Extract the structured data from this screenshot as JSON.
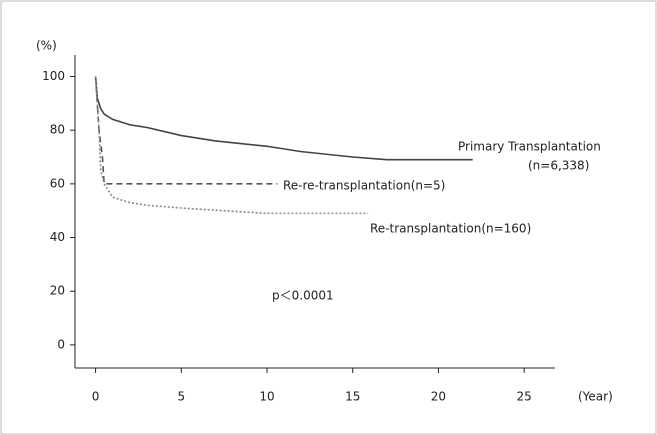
{
  "chart_data": {
    "type": "line",
    "y_label": "(%)",
    "x_label": "(Year)",
    "xlim": [
      -1.2,
      26.8
    ],
    "ylim": [
      -8.6,
      108
    ],
    "xticks": [
      0,
      5,
      10,
      15,
      20,
      25
    ],
    "yticks": [
      0,
      20,
      40,
      60,
      80,
      100
    ],
    "series": [
      {
        "name": "Primary Transplantation",
        "color": "#444444",
        "line_style": "solid",
        "x": [
          0,
          0.1,
          0.3,
          0.5,
          1,
          2,
          3,
          5,
          7,
          10,
          12,
          15,
          17,
          22
        ],
        "values": [
          100,
          92,
          88,
          86,
          84,
          82,
          81,
          78,
          76,
          74,
          72,
          70,
          69,
          69
        ]
      },
      {
        "name": "Re-re-transplantation(n=5)",
        "color": "#555555",
        "line_style": "dashed",
        "x": [
          0,
          0.2,
          0.4,
          0.5,
          10.6
        ],
        "values": [
          100,
          80,
          70,
          60,
          60
        ]
      },
      {
        "name": "Re-transplantation(n=160)",
        "color": "#888888",
        "line_style": "dotted",
        "x": [
          0,
          0.2,
          0.3,
          0.5,
          1,
          2,
          3,
          5,
          7.5,
          10,
          15.9
        ],
        "values": [
          100,
          80,
          65,
          60,
          55,
          53,
          52,
          51,
          50,
          49,
          49
        ]
      }
    ],
    "annotations": [
      "(n=6,338)",
      "p＜0.0001"
    ]
  }
}
